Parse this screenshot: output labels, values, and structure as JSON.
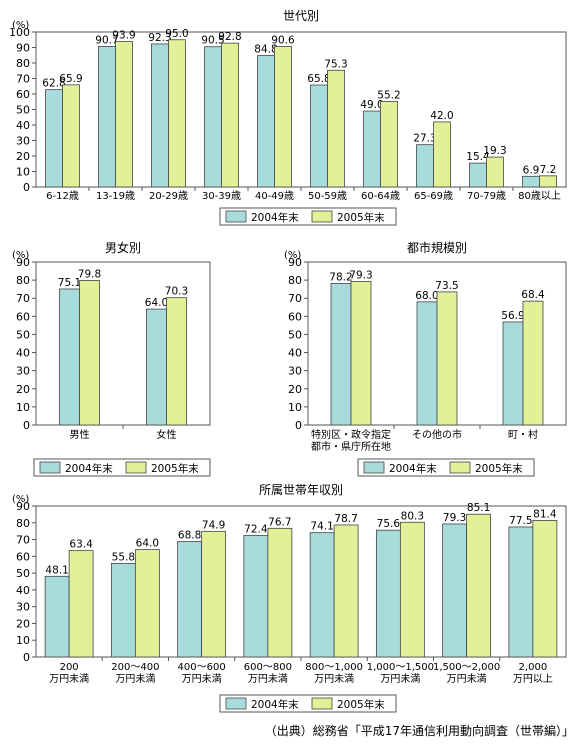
{
  "legend": {
    "series_2004": "2004年末",
    "series_2005": "2005年末"
  },
  "colors": {
    "series_2004": "#a8dcdc",
    "series_2005": "#e2f098",
    "frame": "#555555"
  },
  "source": "（出典）総務省「平成17年通信利用動向調査（世帯編）」",
  "chart_data": [
    {
      "id": "age",
      "type": "bar",
      "title": "世代別",
      "ylabel": "(%)",
      "ylim": [
        0,
        100
      ],
      "ystep": 10,
      "categories": [
        [
          "6-12歳"
        ],
        [
          "13-19歳"
        ],
        [
          "20-29歳"
        ],
        [
          "30-39歳"
        ],
        [
          "40-49歳"
        ],
        [
          "50-59歳"
        ],
        [
          "60-64歳"
        ],
        [
          "65-69歳"
        ],
        [
          "70-79歳"
        ],
        [
          "80歳以上"
        ]
      ],
      "series": [
        {
          "name": "2004年末",
          "values": [
            62.8,
            90.7,
            92.3,
            90.5,
            84.8,
            65.8,
            49.0,
            27.3,
            15.4,
            6.9
          ]
        },
        {
          "name": "2005年末",
          "values": [
            65.9,
            93.9,
            95.0,
            92.8,
            90.6,
            75.3,
            55.2,
            42.0,
            19.3,
            7.2
          ]
        }
      ],
      "legend_position": "bottom-center"
    },
    {
      "id": "gender",
      "type": "bar",
      "title": "男女別",
      "ylabel": "(%)",
      "ylim": [
        0,
        90
      ],
      "ystep": 10,
      "categories": [
        [
          "男性"
        ],
        [
          "女性"
        ]
      ],
      "series": [
        {
          "name": "2004年末",
          "values": [
            75.1,
            64.0
          ]
        },
        {
          "name": "2005年末",
          "values": [
            79.8,
            70.3
          ]
        }
      ],
      "legend_position": "bottom-center"
    },
    {
      "id": "city",
      "type": "bar",
      "title": "都市規模別",
      "ylabel": "(%)",
      "ylim": [
        0,
        90
      ],
      "ystep": 10,
      "categories": [
        [
          "特別区・政令指定",
          "都市・県庁所在地"
        ],
        [
          "その他の市"
        ],
        [
          "町・村"
        ]
      ],
      "series": [
        {
          "name": "2004年末",
          "values": [
            78.2,
            68.0,
            56.9
          ]
        },
        {
          "name": "2005年末",
          "values": [
            79.3,
            73.5,
            68.4
          ]
        }
      ],
      "legend_position": "bottom-center"
    },
    {
      "id": "income",
      "type": "bar",
      "title": "所属世帯年収別",
      "ylabel": "(%)",
      "ylim": [
        0,
        90
      ],
      "ystep": 10,
      "categories": [
        [
          "200",
          "万円未満"
        ],
        [
          "200～400",
          "万円未満"
        ],
        [
          "400～600",
          "万円未満"
        ],
        [
          "600～800",
          "万円未満"
        ],
        [
          "800～1,000",
          "万円未満"
        ],
        [
          "1,000～1,500",
          "万円未満"
        ],
        [
          "1,500～2,000",
          "万円未満"
        ],
        [
          "2,000",
          "万円以上"
        ]
      ],
      "series": [
        {
          "name": "2004年末",
          "values": [
            48.1,
            55.8,
            68.8,
            72.4,
            74.1,
            75.6,
            79.3,
            77.5
          ]
        },
        {
          "name": "2005年末",
          "values": [
            63.4,
            64.0,
            74.9,
            76.7,
            78.7,
            80.3,
            85.1,
            81.4
          ]
        }
      ],
      "legend_position": "bottom-center"
    }
  ]
}
